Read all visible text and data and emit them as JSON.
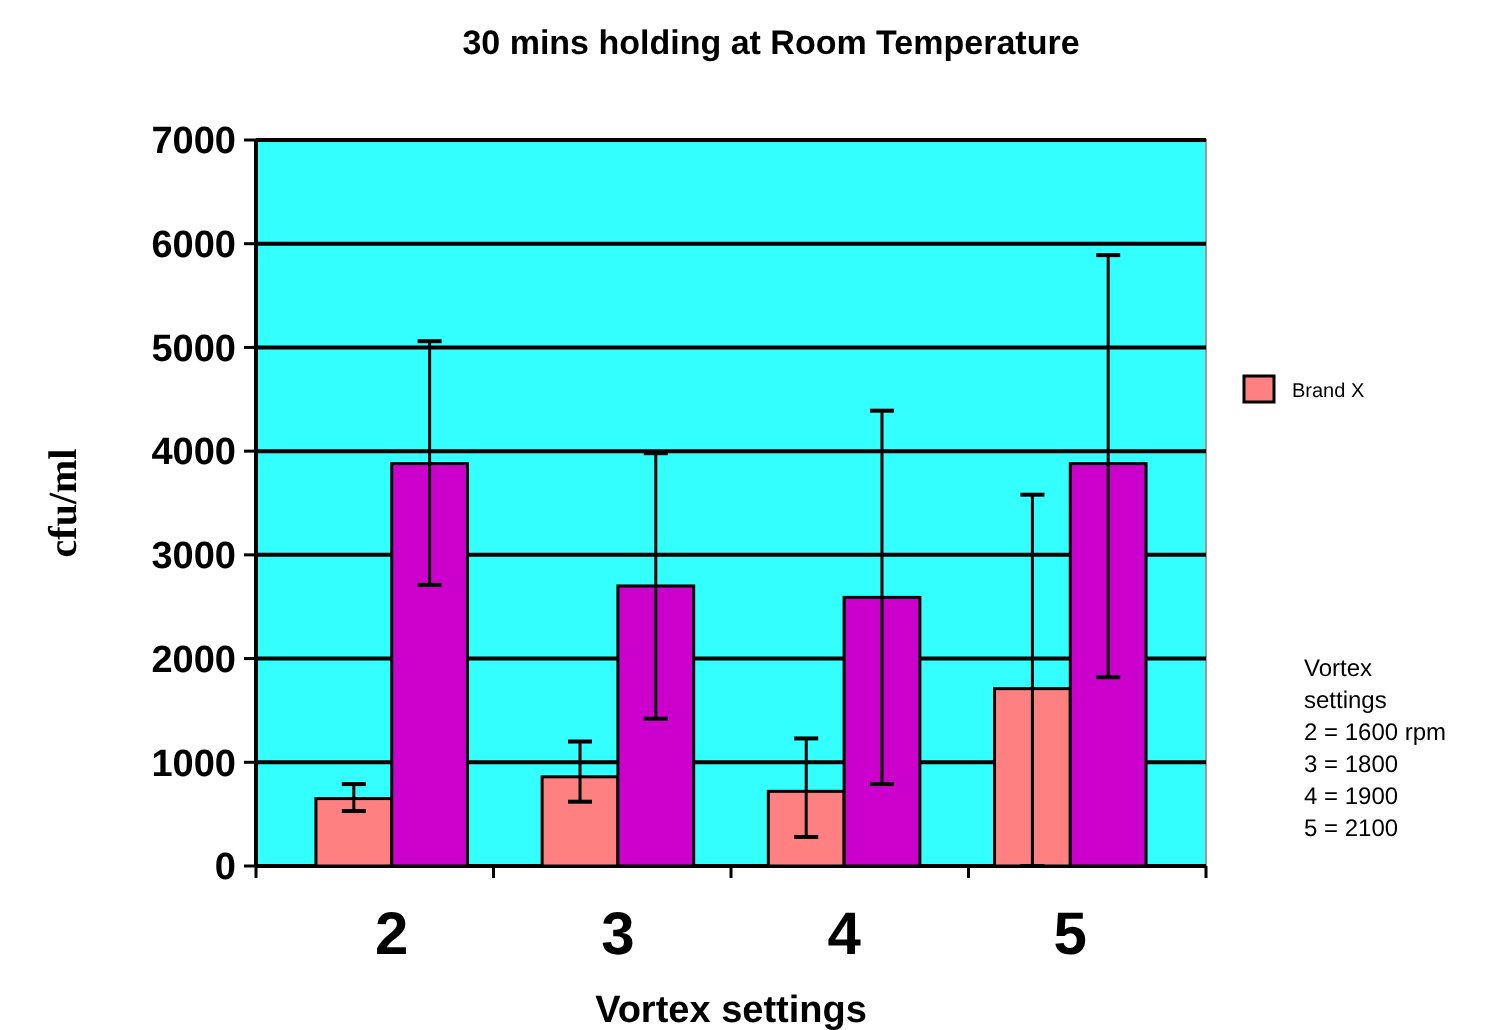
{
  "chart_data": {
    "type": "bar",
    "title": "30 mins holding at Room Temperature",
    "xlabel": "Vortex settings",
    "ylabel": "cfu/ml",
    "categories": [
      "2",
      "3",
      "4",
      "5"
    ],
    "series": [
      {
        "name": "Brand X",
        "color": "#ff8080",
        "values": [
          650,
          860,
          720,
          1710
        ],
        "errors": [
          [
            530,
            790
          ],
          [
            620,
            1200
          ],
          [
            280,
            1230
          ],
          [
            0,
            3580
          ]
        ]
      },
      {
        "color": "#cc00cc",
        "values": [
          3880,
          2700,
          2590,
          3880
        ],
        "errors": [
          [
            2710,
            5060
          ],
          [
            1420,
            3980
          ],
          [
            790,
            4390
          ],
          [
            1820,
            5890
          ]
        ]
      }
    ],
    "ylim": [
      0,
      7000
    ],
    "yticks": [
      0,
      1000,
      2000,
      3000,
      4000,
      5000,
      6000,
      7000
    ],
    "grid": "y",
    "legend": "right",
    "annotations": [
      "Vortex\nsettings\n2 = 1600 rpm\n3 = 1800\n4 = 1900\n5 = 2100"
    ]
  }
}
